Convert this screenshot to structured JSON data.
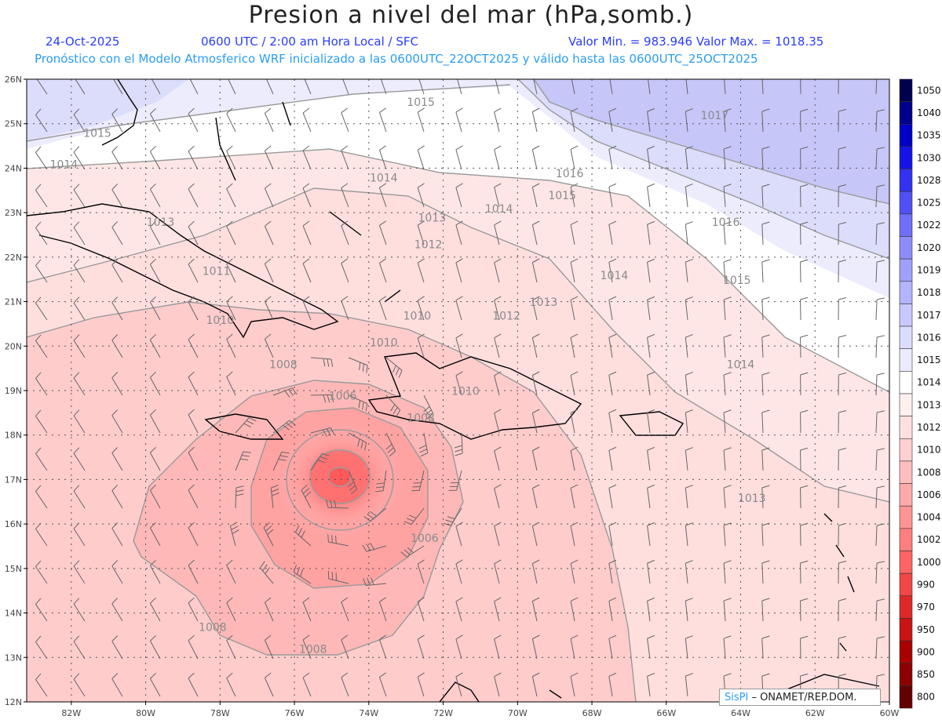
{
  "header": {
    "title": "Presion a nivel del mar (hPa,somb.)",
    "date": "24-Oct-2025",
    "time": "0600 UTC / 2:00 am Hora Local / SFC",
    "minmax": "Valor Min. = 983.946  Valor Max. = 1018.35",
    "forecast": "Pronóstico con el Modelo Atmosferico WRF inicializado a las 0600UTC_22OCT2025 y válido hasta las  0600UTC_25OCT2025"
  },
  "axes": {
    "lat_labels": [
      "26N",
      "25N",
      "24N",
      "23N",
      "22N",
      "21N",
      "20N",
      "19N",
      "18N",
      "17N",
      "16N",
      "15N",
      "14N",
      "13N",
      "12N"
    ],
    "lon_labels": [
      "82W",
      "80W",
      "78W",
      "76W",
      "74W",
      "72W",
      "70W",
      "68W",
      "66W",
      "64W",
      "62W",
      "60W"
    ]
  },
  "colorbar": {
    "labels": [
      "1050",
      "1040",
      "1035",
      "1030",
      "1028",
      "1025",
      "1022",
      "1020",
      "1019",
      "1018",
      "1017",
      "1016",
      "1015",
      "1014",
      "1013",
      "1012",
      "1010",
      "1008",
      "1006",
      "1004",
      "1002",
      "1000",
      "990",
      "970",
      "950",
      "900",
      "850",
      "800"
    ],
    "colors": [
      "#000050",
      "#00008c",
      "#0000c8",
      "#1414e6",
      "#3232f0",
      "#5050f5",
      "#6e6ef8",
      "#8c8cfa",
      "#a0a0fc",
      "#b4b4fd",
      "#c8c8fe",
      "#dcdcff",
      "#ebebff",
      "#ffffff",
      "#fff0f0",
      "#ffe0e0",
      "#ffd0d0",
      "#ffbebe",
      "#ffaaaa",
      "#ff9494",
      "#ff7e7e",
      "#ff6464",
      "#f04646",
      "#dc2828",
      "#c81414",
      "#aa0000",
      "#8c0000",
      "#640000"
    ]
  },
  "contour_labels": [
    {
      "text": "1015",
      "lon": -72.6,
      "lat": 25.4
    },
    {
      "text": "1017",
      "lon": -64.7,
      "lat": 25.1
    },
    {
      "text": "1015",
      "lon": -81.3,
      "lat": 24.7
    },
    {
      "text": "1014",
      "lon": -82.2,
      "lat": 24.0
    },
    {
      "text": "1014",
      "lon": -73.6,
      "lat": 23.7
    },
    {
      "text": "1016",
      "lon": -68.6,
      "lat": 23.8
    },
    {
      "text": "1015",
      "lon": -68.8,
      "lat": 23.3
    },
    {
      "text": "1016",
      "lon": -64.4,
      "lat": 22.7
    },
    {
      "text": "1013",
      "lon": -79.6,
      "lat": 22.7
    },
    {
      "text": "1013",
      "lon": -72.3,
      "lat": 22.8
    },
    {
      "text": "1014",
      "lon": -70.5,
      "lat": 23.0
    },
    {
      "text": "1012",
      "lon": -72.4,
      "lat": 22.2
    },
    {
      "text": "1011",
      "lon": -78.1,
      "lat": 21.6
    },
    {
      "text": "1014",
      "lon": -67.4,
      "lat": 21.5
    },
    {
      "text": "1015",
      "lon": -64.1,
      "lat": 21.4
    },
    {
      "text": "1013",
      "lon": -69.3,
      "lat": 20.9
    },
    {
      "text": "1012",
      "lon": -70.3,
      "lat": 20.6
    },
    {
      "text": "1010",
      "lon": -78.0,
      "lat": 20.5
    },
    {
      "text": "1010",
      "lon": -72.7,
      "lat": 20.6
    },
    {
      "text": "1010",
      "lon": -73.6,
      "lat": 20.0
    },
    {
      "text": "1014",
      "lon": -64.0,
      "lat": 19.5
    },
    {
      "text": "1008",
      "lon": -76.3,
      "lat": 19.5
    },
    {
      "text": "1006",
      "lon": -74.7,
      "lat": 18.8
    },
    {
      "text": "1010",
      "lon": -71.4,
      "lat": 18.9
    },
    {
      "text": "1008",
      "lon": -72.6,
      "lat": 18.3
    },
    {
      "text": "1013",
      "lon": -63.7,
      "lat": 16.5
    },
    {
      "text": "1006",
      "lon": -72.5,
      "lat": 15.6
    },
    {
      "text": "1008",
      "lon": -78.2,
      "lat": 13.6
    },
    {
      "text": "1008",
      "lon": -75.5,
      "lat": 13.1
    }
  ],
  "logo": {
    "brand": "SisPI",
    "org": " – ONAMET/REP.DOM."
  }
}
